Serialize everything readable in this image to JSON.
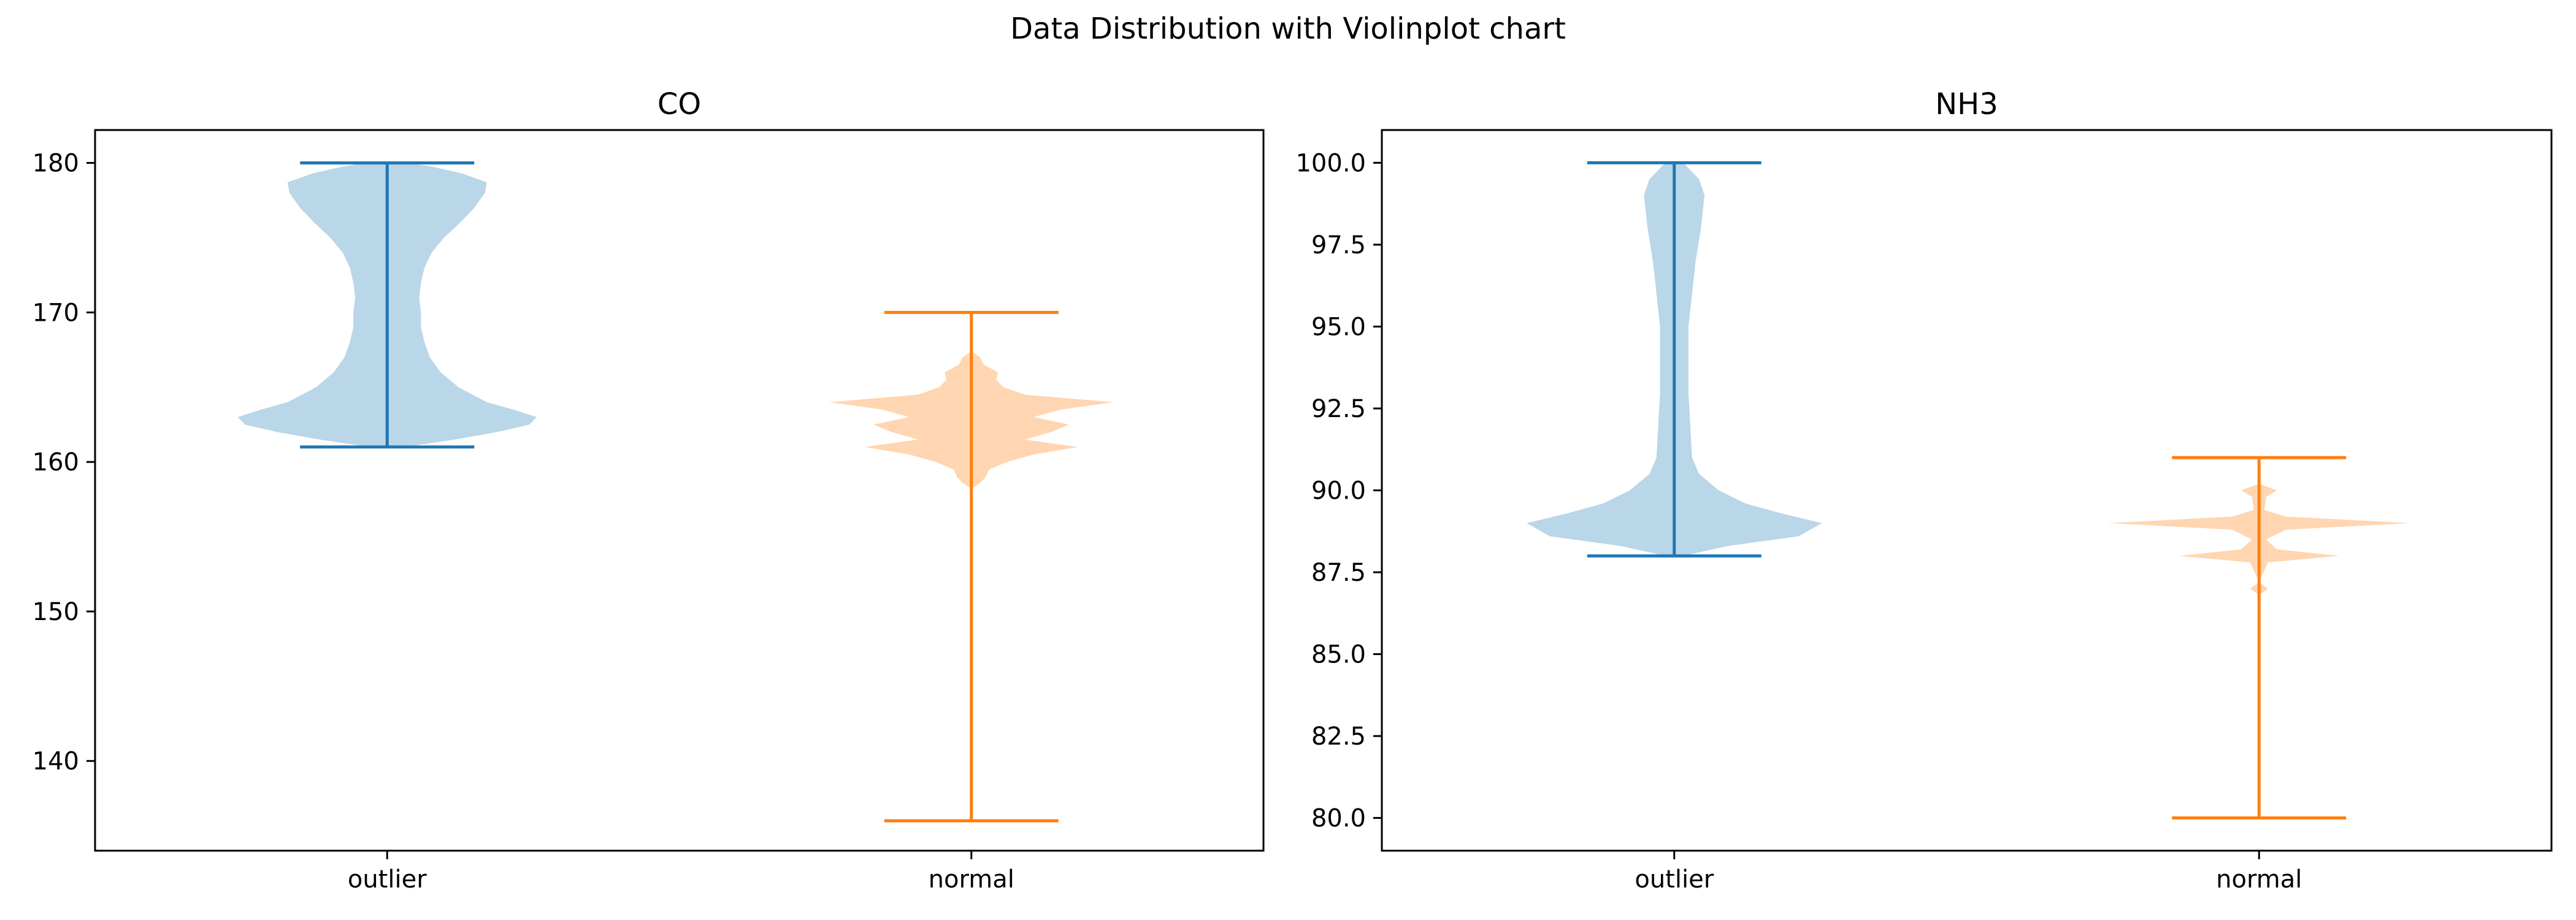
{
  "figure_title": "Data Distribution with Violinplot chart",
  "colors": {
    "outlier_line": "#1f77b4",
    "outlier_fill": "#bad6e9",
    "normal_line": "#ff7f0e",
    "normal_fill": "#ffd6b1",
    "axis": "#000000",
    "text": "#000000"
  },
  "chart_data": [
    {
      "type": "violin",
      "title": "CO",
      "xlabel": "",
      "ylabel": "",
      "categories": [
        "outlier",
        "normal"
      ],
      "ylim": [
        134,
        182.2
      ],
      "yticks": [
        140,
        150,
        160,
        170,
        180
      ],
      "ytick_labels": [
        "140",
        "150",
        "160",
        "170",
        "180"
      ],
      "grid": false,
      "series": [
        {
          "values_summary": {
            "min": 161,
            "max": 180
          },
          "density": [
            [
              161.0,
              0.1
            ],
            [
              161.5,
              0.38
            ],
            [
              162.0,
              0.62
            ],
            [
              162.5,
              0.8
            ],
            [
              163.0,
              0.84
            ],
            [
              163.5,
              0.71
            ],
            [
              164.0,
              0.56
            ],
            [
              165.0,
              0.4
            ],
            [
              166.0,
              0.3
            ],
            [
              167.0,
              0.24
            ],
            [
              168.0,
              0.21
            ],
            [
              169.0,
              0.19
            ],
            [
              170.0,
              0.19
            ],
            [
              171.0,
              0.18
            ],
            [
              172.0,
              0.19
            ],
            [
              173.0,
              0.21
            ],
            [
              174.0,
              0.25
            ],
            [
              175.0,
              0.32
            ],
            [
              176.0,
              0.41
            ],
            [
              177.0,
              0.49
            ],
            [
              178.0,
              0.55
            ],
            [
              178.7,
              0.56
            ],
            [
              179.3,
              0.42
            ],
            [
              179.7,
              0.27
            ],
            [
              180.0,
              0.13
            ]
          ]
        },
        {
          "values_summary": {
            "min": 136,
            "max": 170
          },
          "density": [
            [
              158.2,
              0.0
            ],
            [
              158.6,
              0.05
            ],
            [
              159.0,
              0.08
            ],
            [
              159.5,
              0.1
            ],
            [
              160.0,
              0.2
            ],
            [
              160.5,
              0.35
            ],
            [
              161.0,
              0.6
            ],
            [
              161.5,
              0.3
            ],
            [
              162.0,
              0.45
            ],
            [
              162.5,
              0.55
            ],
            [
              163.0,
              0.35
            ],
            [
              163.5,
              0.5
            ],
            [
              164.0,
              0.8
            ],
            [
              164.5,
              0.3
            ],
            [
              165.0,
              0.18
            ],
            [
              165.5,
              0.14
            ],
            [
              166.0,
              0.15
            ],
            [
              166.5,
              0.07
            ],
            [
              167.0,
              0.05
            ],
            [
              167.4,
              0.0
            ]
          ]
        }
      ]
    },
    {
      "type": "violin",
      "title": "NH3",
      "xlabel": "",
      "ylabel": "",
      "categories": [
        "outlier",
        "normal"
      ],
      "ylim": [
        79,
        101
      ],
      "yticks": [
        80,
        82.5,
        85,
        87.5,
        90,
        92.5,
        95,
        97.5,
        100
      ],
      "ytick_labels": [
        "80.0",
        "82.5",
        "85.0",
        "87.5",
        "90.0",
        "92.5",
        "95.0",
        "97.5",
        "100.0"
      ],
      "grid": false,
      "series": [
        {
          "values_summary": {
            "min": 88,
            "max": 100
          },
          "density": [
            [
              88.0,
              0.05
            ],
            [
              88.3,
              0.3
            ],
            [
              88.6,
              0.7
            ],
            [
              89.0,
              0.83
            ],
            [
              89.3,
              0.6
            ],
            [
              89.6,
              0.4
            ],
            [
              90.0,
              0.25
            ],
            [
              90.5,
              0.14
            ],
            [
              91.0,
              0.1
            ],
            [
              92.0,
              0.09
            ],
            [
              93.0,
              0.08
            ],
            [
              94.0,
              0.08
            ],
            [
              95.0,
              0.08
            ],
            [
              96.0,
              0.1
            ],
            [
              97.0,
              0.12
            ],
            [
              98.0,
              0.15
            ],
            [
              99.0,
              0.17
            ],
            [
              99.5,
              0.14
            ],
            [
              100.0,
              0.05
            ]
          ]
        },
        {
          "values_summary": {
            "min": 80,
            "max": 91
          },
          "density": [
            [
              86.8,
              0.0
            ],
            [
              87.0,
              0.05
            ],
            [
              87.2,
              0.0
            ],
            [
              87.8,
              0.05
            ],
            [
              88.0,
              0.45
            ],
            [
              88.2,
              0.1
            ],
            [
              88.5,
              0.04
            ],
            [
              88.8,
              0.15
            ],
            [
              89.0,
              0.85
            ],
            [
              89.2,
              0.15
            ],
            [
              89.4,
              0.03
            ],
            [
              89.8,
              0.04
            ],
            [
              90.0,
              0.1
            ],
            [
              90.2,
              0.0
            ]
          ]
        }
      ]
    }
  ]
}
